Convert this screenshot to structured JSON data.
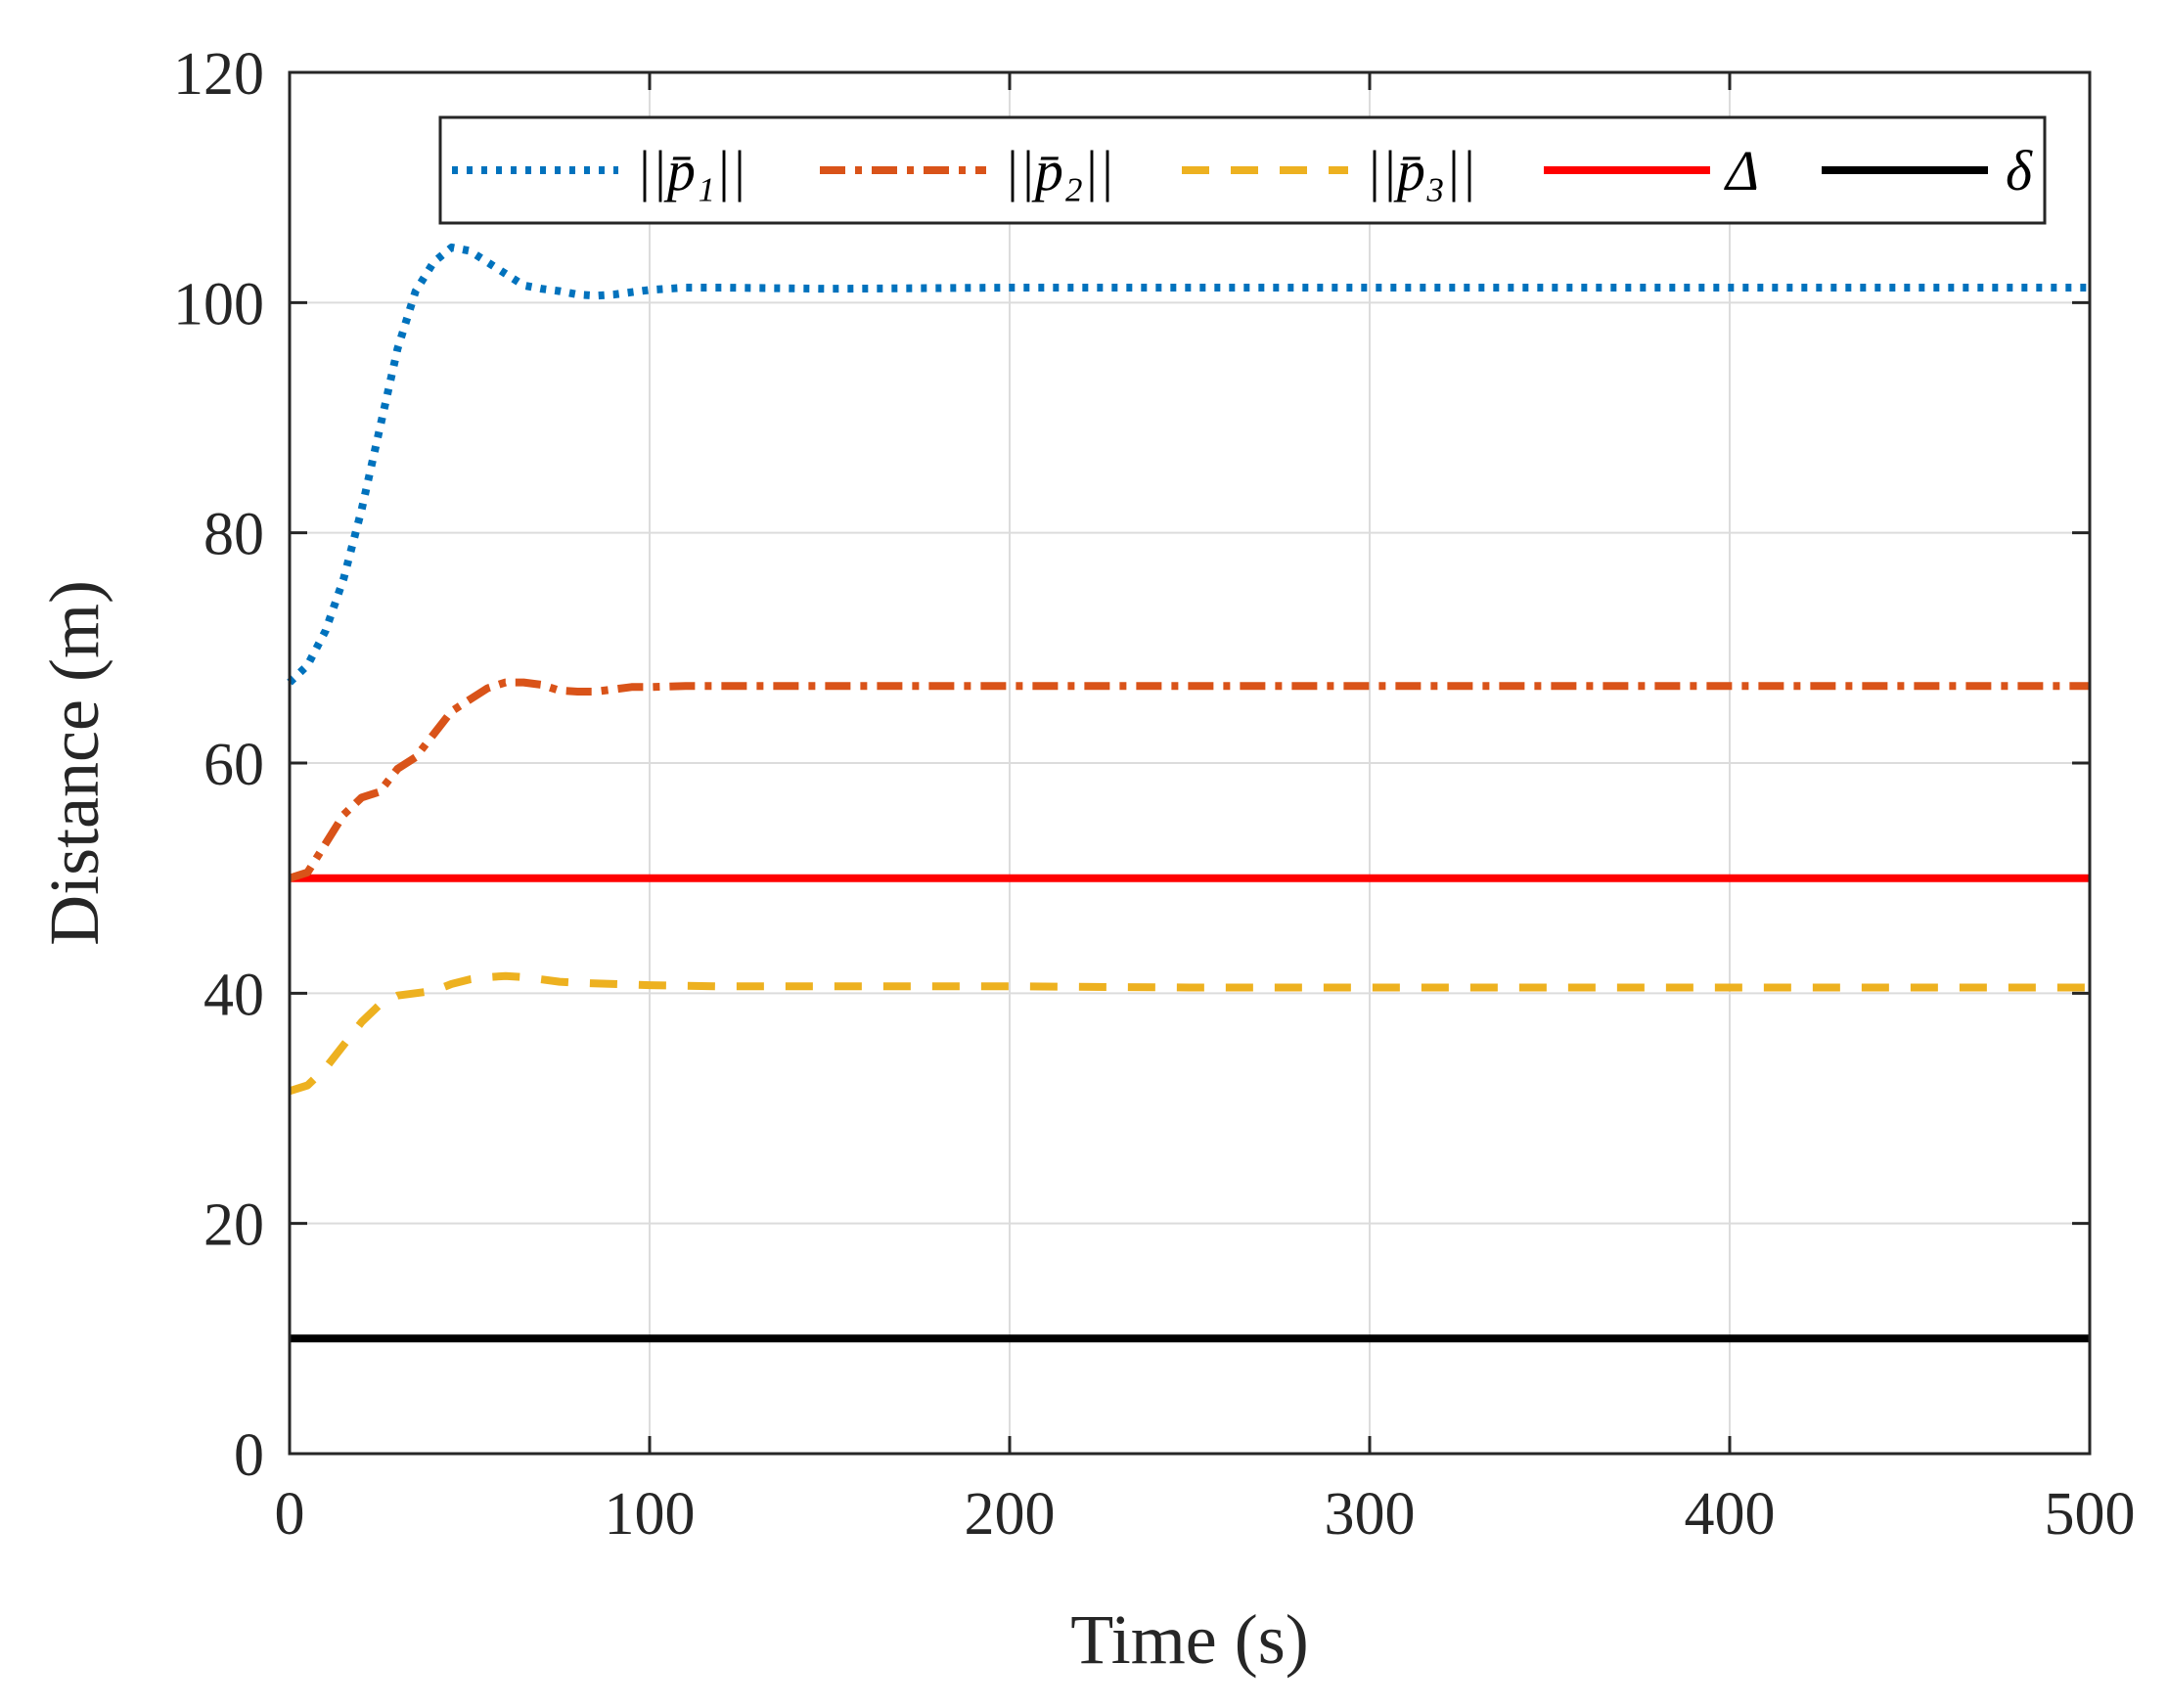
{
  "chart_data": {
    "type": "line",
    "title": "",
    "xlabel": "Time (s)",
    "ylabel": "Distance (m)",
    "xlim": [
      0,
      500
    ],
    "ylim": [
      0,
      120
    ],
    "xticks": [
      0,
      100,
      200,
      300,
      400,
      500
    ],
    "yticks": [
      0,
      20,
      40,
      60,
      80,
      100,
      120
    ],
    "xtick_labels": [
      "0",
      "100",
      "200",
      "300",
      "400",
      "500"
    ],
    "ytick_labels": [
      "0",
      "20",
      "40",
      "60",
      "80",
      "100",
      "120"
    ],
    "grid": true,
    "legend_position": "top",
    "series": [
      {
        "name": "||p̄1||",
        "label": "||p̄₁||",
        "color": "#0072BD",
        "style": "dotted",
        "x": [
          0,
          5,
          10,
          15,
          20,
          25,
          30,
          35,
          40,
          45,
          50,
          55,
          60,
          65,
          70,
          75,
          80,
          85,
          90,
          95,
          100,
          110,
          120,
          150,
          200,
          250,
          300,
          350,
          400,
          450,
          500
        ],
        "y": [
          67,
          68.5,
          71.5,
          76,
          82,
          89,
          96,
          101,
          103.5,
          104.8,
          104.5,
          103.5,
          102.5,
          101.5,
          101.2,
          101.0,
          100.7,
          100.6,
          100.7,
          100.9,
          101.1,
          101.3,
          101.3,
          101.2,
          101.3,
          101.3,
          101.3,
          101.3,
          101.3,
          101.3,
          101.3
        ]
      },
      {
        "name": "||p̄2||",
        "label": "||p̄₂||",
        "color": "#D95319",
        "style": "dashdot",
        "x": [
          0,
          5,
          10,
          15,
          20,
          25,
          30,
          35,
          40,
          45,
          50,
          55,
          60,
          65,
          70,
          75,
          80,
          85,
          90,
          95,
          100,
          110,
          120,
          150,
          200,
          250,
          300,
          350,
          400,
          450,
          500
        ],
        "y": [
          50,
          50.5,
          53,
          55.5,
          57,
          57.5,
          59.5,
          60.5,
          62.5,
          64.5,
          65.5,
          66.5,
          67,
          67,
          66.8,
          66.3,
          66.2,
          66.2,
          66.4,
          66.6,
          66.6,
          66.7,
          66.7,
          66.7,
          66.7,
          66.7,
          66.7,
          66.7,
          66.7,
          66.7,
          66.7
        ]
      },
      {
        "name": "||p̄3||",
        "label": "||p̄₃||",
        "color": "#EDB120",
        "style": "dashed",
        "x": [
          0,
          5,
          10,
          15,
          20,
          25,
          30,
          35,
          40,
          45,
          50,
          55,
          60,
          65,
          70,
          75,
          80,
          90,
          100,
          120,
          150,
          200,
          250,
          300,
          350,
          400,
          450,
          500
        ],
        "y": [
          31.5,
          32,
          33.5,
          35.5,
          37.5,
          39,
          39.8,
          40,
          40.2,
          40.8,
          41.2,
          41.4,
          41.5,
          41.4,
          41.2,
          41.0,
          40.9,
          40.8,
          40.7,
          40.6,
          40.6,
          40.6,
          40.5,
          40.5,
          40.5,
          40.5,
          40.5,
          40.5
        ]
      },
      {
        "name": "Δ",
        "label": "Δ",
        "color": "#FF0000",
        "style": "solid",
        "x": [
          0,
          500
        ],
        "y": [
          50,
          50
        ]
      },
      {
        "name": "δ",
        "label": "δ",
        "color": "#000000",
        "style": "solid",
        "x": [
          0,
          500
        ],
        "y": [
          10,
          10
        ]
      }
    ]
  }
}
